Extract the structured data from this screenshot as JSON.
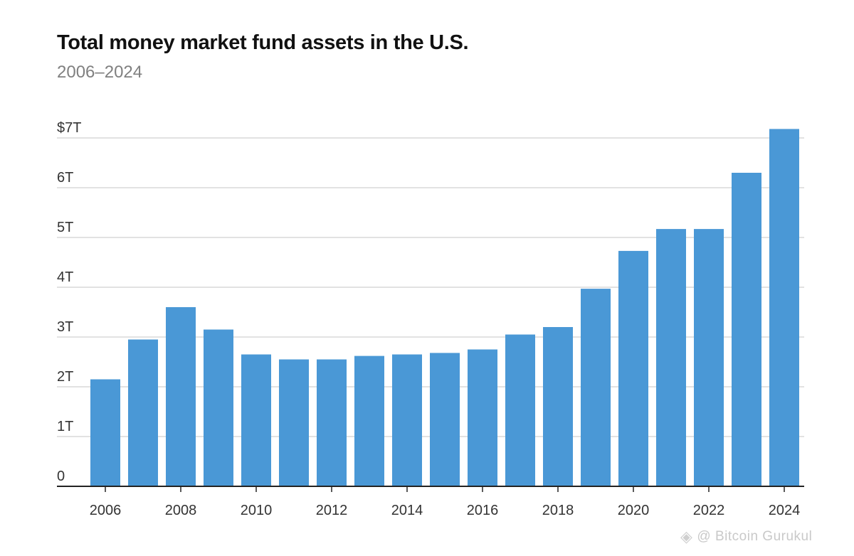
{
  "chart_data": {
    "type": "bar",
    "title": "Total money market fund assets in the U.S.",
    "subtitle": "2006–2024",
    "xlabel": "",
    "ylabel": "",
    "ylim": [
      0,
      7
    ],
    "grid": true,
    "bar_color": "#4a98d6",
    "categories": [
      "2006",
      "2007",
      "2008",
      "2009",
      "2010",
      "2011",
      "2012",
      "2013",
      "2014",
      "2015",
      "2016",
      "2017",
      "2018",
      "2019",
      "2020",
      "2021",
      "2022",
      "2023",
      "2024"
    ],
    "values": [
      2.15,
      2.95,
      3.6,
      3.15,
      2.65,
      2.55,
      2.55,
      2.62,
      2.65,
      2.68,
      2.75,
      3.05,
      3.2,
      3.97,
      4.73,
      5.17,
      5.17,
      6.3,
      7.18
    ],
    "y_ticks": [
      {
        "value": 0,
        "label": "0"
      },
      {
        "value": 1,
        "label": "1T"
      },
      {
        "value": 2,
        "label": "2T"
      },
      {
        "value": 3,
        "label": "3T"
      },
      {
        "value": 4,
        "label": "4T"
      },
      {
        "value": 5,
        "label": "5T"
      },
      {
        "value": 6,
        "label": "6T"
      },
      {
        "value": 7,
        "label": "$7T"
      }
    ],
    "x_ticks": [
      "2006",
      "2008",
      "2010",
      "2012",
      "2014",
      "2016",
      "2018",
      "2020",
      "2022",
      "2024"
    ]
  },
  "watermark": {
    "text": "@ Bitcoin Gurukul",
    "icon": "binance-diamond-icon"
  }
}
